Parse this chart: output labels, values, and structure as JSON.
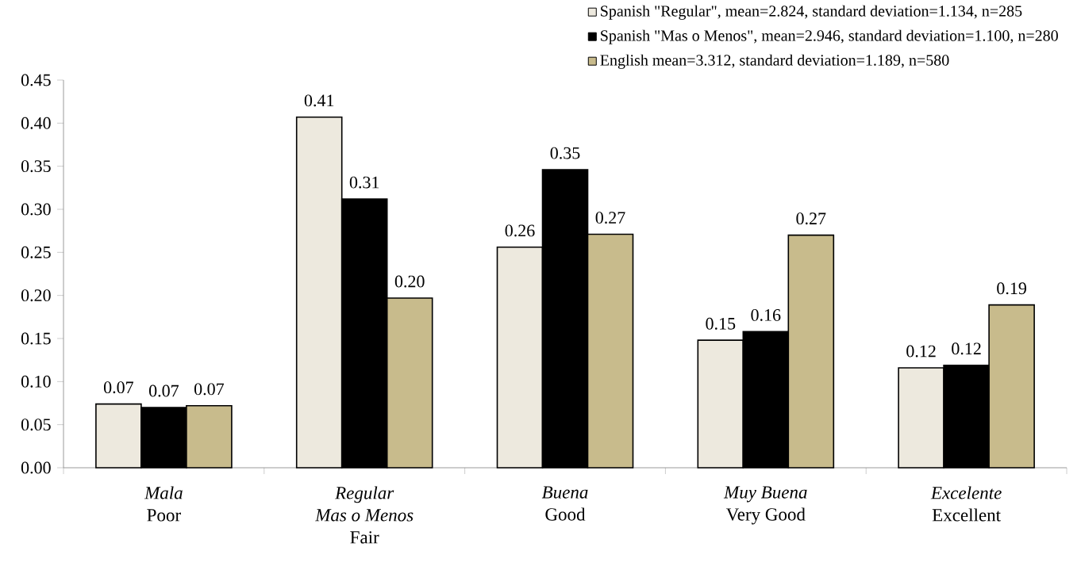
{
  "chart_data": {
    "type": "bar",
    "categories": [
      "*Mala*\nPoor",
      "*Regular*\n*Mas o Menos*\nFair",
      "*Buena*\nGood",
      "*Muy Buena*\nVery Good",
      "*Excelente*\nExcellent"
    ],
    "series": [
      {
        "name": "Spanish \"Regular\", mean=2.824, standard deviation=1.134, n=285",
        "color": "#ede9de",
        "values": [
          0.074,
          0.407,
          0.256,
          0.148,
          0.116
        ],
        "value_labels": [
          "0.07",
          "0.41",
          "0.26",
          "0.15",
          "0.12"
        ]
      },
      {
        "name": "Spanish \"Mas o Menos\", mean=2.946, standard deviation=1.100, n=280",
        "color": "#000000",
        "values": [
          0.07,
          0.312,
          0.346,
          0.158,
          0.119
        ],
        "value_labels": [
          "0.07",
          "0.31",
          "0.35",
          "0.16",
          "0.12"
        ]
      },
      {
        "name": "English mean=3.312, standard deviation=1.189, n=580",
        "color": "#c8bb8c",
        "values": [
          0.072,
          0.197,
          0.271,
          0.27,
          0.189
        ],
        "value_labels": [
          "0.07",
          "0.20",
          "0.27",
          "0.27",
          "0.19"
        ]
      }
    ],
    "ylim": [
      0,
      0.45
    ],
    "yticks": [
      {
        "value": 0,
        "label": "0.00"
      },
      {
        "value": 0.05,
        "label": "0.05"
      },
      {
        "value": 0.1,
        "label": "0.10"
      },
      {
        "value": 0.15,
        "label": "0.15"
      },
      {
        "value": 0.2,
        "label": "0.20"
      },
      {
        "value": 0.25,
        "label": "0.25"
      },
      {
        "value": 0.3,
        "label": "0.30"
      },
      {
        "value": 0.35,
        "label": "0.35"
      },
      {
        "value": 0.4,
        "label": "0.40"
      },
      {
        "value": 0.45,
        "label": "0.45"
      }
    ],
    "legend": "top right"
  }
}
